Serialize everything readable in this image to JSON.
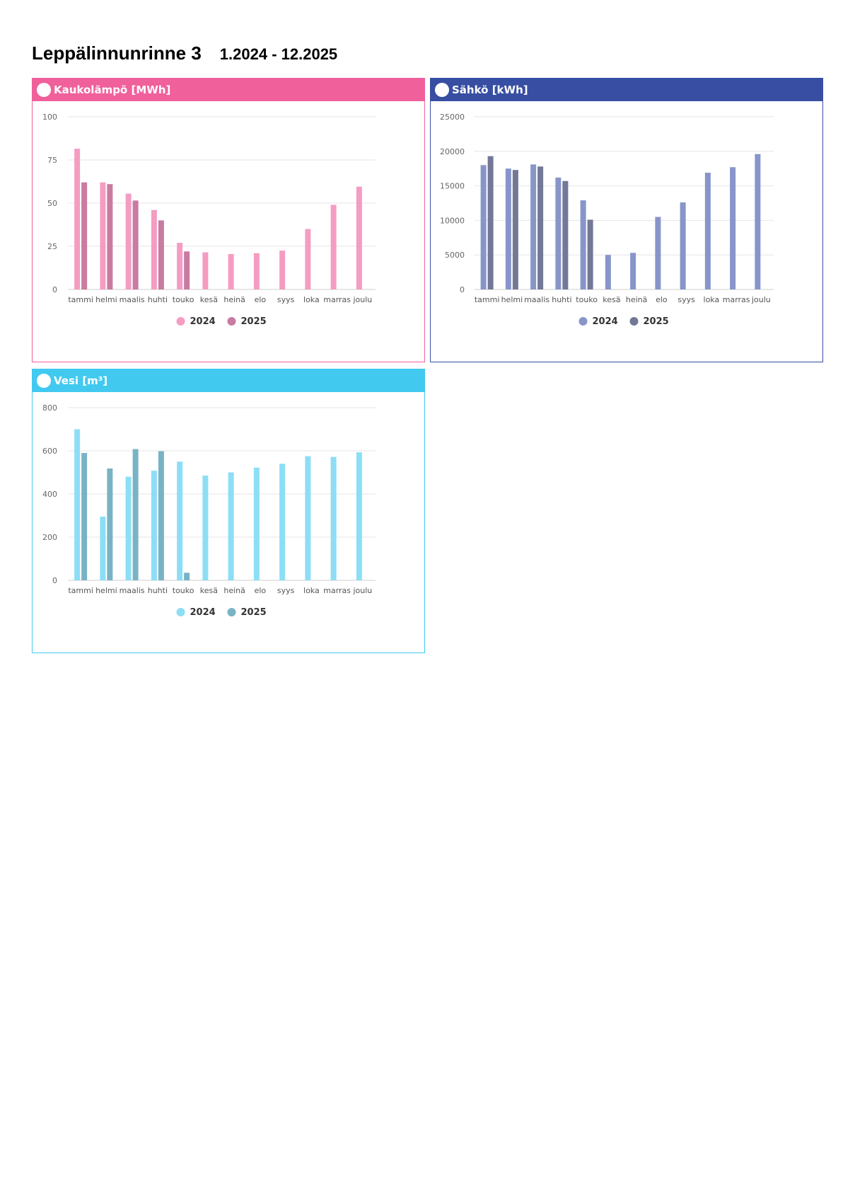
{
  "page": {
    "title": "Leppälinnunrinne 3",
    "period": "1.2024 - 12.2025"
  },
  "panels": [
    {
      "key": "heat",
      "header": "Kaukolämpö [MWh]",
      "accent": "#f0609b",
      "colors": [
        "#f59cc3",
        "#c97ba0"
      ]
    },
    {
      "key": "electricity",
      "header": "Sähkö [kWh]",
      "accent": "#374ea2",
      "colors": [
        "#8795c9",
        "#737896"
      ]
    },
    {
      "key": "water",
      "header": "Vesi [m³]",
      "accent": "#41c9f0",
      "colors": [
        "#8cdef5",
        "#78b3c4"
      ]
    }
  ],
  "chart_data": [
    {
      "type": "bar",
      "title": "Kaukolämpö [MWh]",
      "categories": [
        "tammi",
        "helmi",
        "maalis",
        "huhti",
        "touko",
        "kesä",
        "heinä",
        "elo",
        "syys",
        "loka",
        "marras",
        "joulu"
      ],
      "ylim": [
        0,
        100
      ],
      "yticks": [
        0,
        25,
        50,
        75,
        100
      ],
      "grid": true,
      "legend": "bottom",
      "series": [
        {
          "name": "2024",
          "values": [
            81.5,
            62,
            55.5,
            46,
            27,
            21.5,
            20.5,
            21,
            22.5,
            35,
            49,
            59.5
          ]
        },
        {
          "name": "2025",
          "values": [
            62,
            61,
            51.5,
            40,
            22,
            null,
            null,
            null,
            null,
            null,
            null,
            null
          ]
        }
      ]
    },
    {
      "type": "bar",
      "title": "Sähkö [kWh]",
      "categories": [
        "tammi",
        "helmi",
        "maalis",
        "huhti",
        "touko",
        "kesä",
        "heinä",
        "elo",
        "syys",
        "loka",
        "marras",
        "joulu"
      ],
      "ylim": [
        0,
        25000
      ],
      "yticks": [
        0,
        5000,
        10000,
        15000,
        20000,
        25000
      ],
      "grid": true,
      "legend": "bottom",
      "series": [
        {
          "name": "2024",
          "values": [
            18000,
            17500,
            18100,
            16200,
            12900,
            5000,
            5300,
            10500,
            12600,
            16900,
            17700,
            19600
          ]
        },
        {
          "name": "2025",
          "values": [
            19300,
            17300,
            17800,
            15700,
            10100,
            null,
            null,
            null,
            null,
            null,
            null,
            null
          ]
        }
      ]
    },
    {
      "type": "bar",
      "title": "Vesi [m³]",
      "categories": [
        "tammi",
        "helmi",
        "maalis",
        "huhti",
        "touko",
        "kesä",
        "heinä",
        "elo",
        "syys",
        "loka",
        "marras",
        "joulu"
      ],
      "ylim": [
        0,
        800
      ],
      "yticks": [
        0,
        200,
        400,
        600,
        800
      ],
      "grid": true,
      "legend": "bottom",
      "series": [
        {
          "name": "2024",
          "values": [
            700,
            295,
            480,
            508,
            550,
            485,
            500,
            522,
            540,
            575,
            572,
            593
          ]
        },
        {
          "name": "2025",
          "values": [
            590,
            518,
            608,
            598,
            35,
            null,
            null,
            null,
            null,
            null,
            null,
            null
          ]
        }
      ]
    }
  ]
}
